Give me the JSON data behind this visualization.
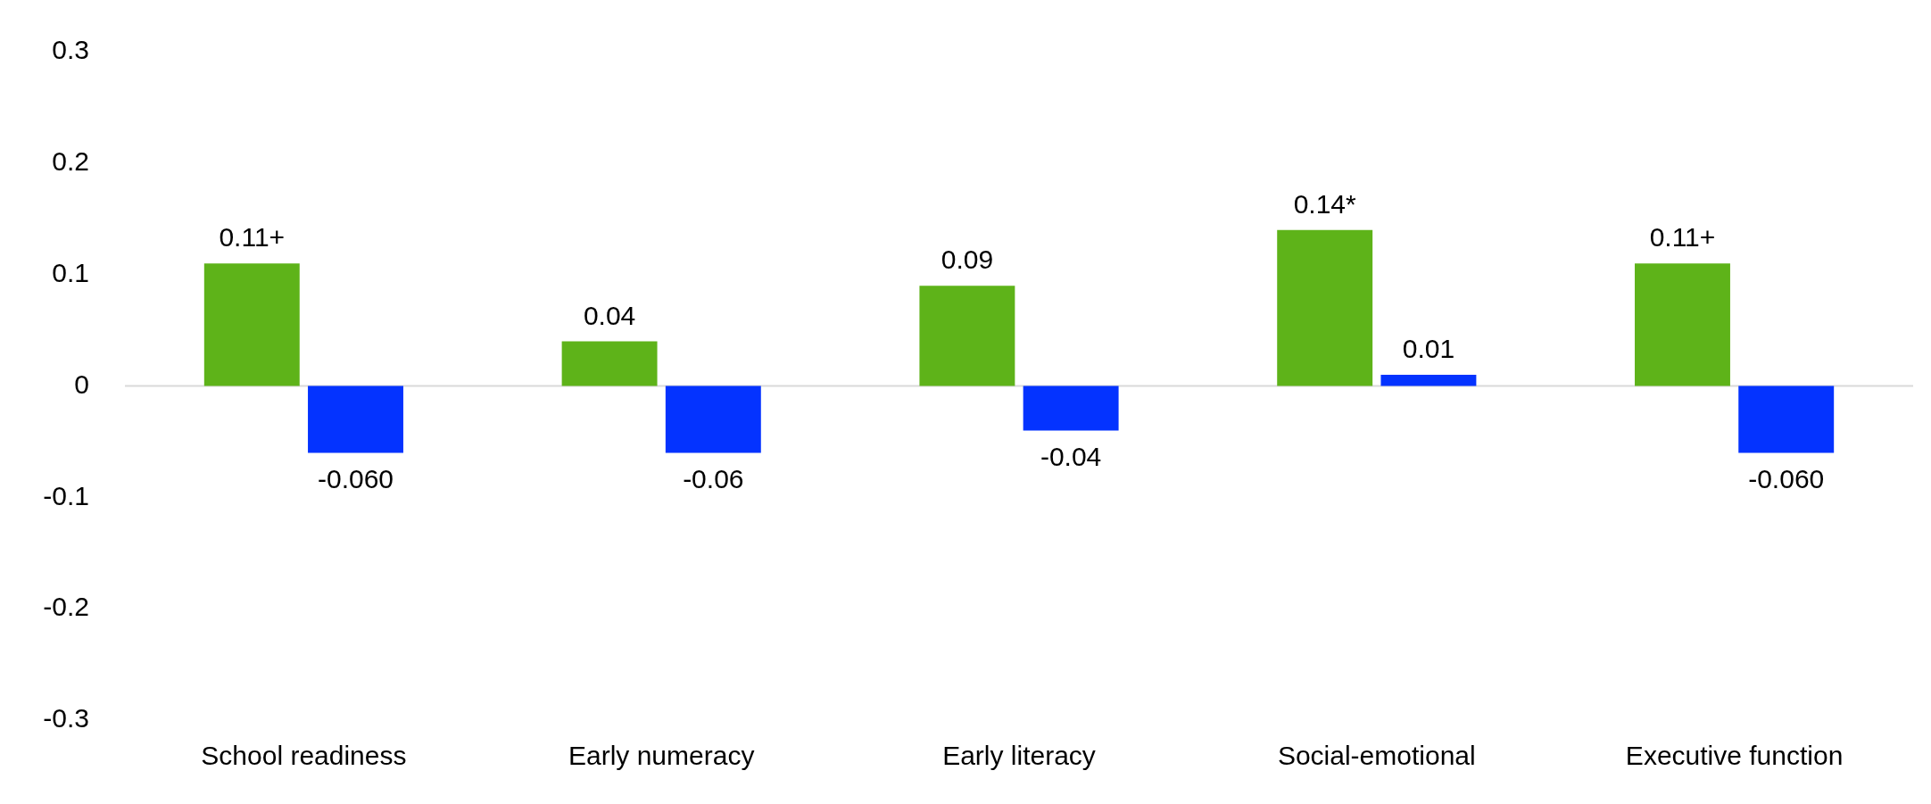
{
  "chart_data": {
    "type": "bar",
    "categories": [
      "School readiness",
      "Early numeracy",
      "Early literacy",
      "Social-emotional",
      "Executive function"
    ],
    "series": [
      {
        "color": "#5eb319",
        "values": [
          0.11,
          0.04,
          0.09,
          0.14,
          0.11
        ],
        "value_labels": [
          "0.11+",
          "0.04",
          "0.09",
          "0.14*",
          "0.11+"
        ]
      },
      {
        "color": "#0433ff",
        "values": [
          -0.06,
          -0.06,
          -0.04,
          0.01,
          -0.06
        ],
        "value_labels": [
          "-0.060",
          "-0.06",
          "-0.04",
          "0.01",
          "-0.060"
        ]
      }
    ],
    "ylim": [
      -0.3,
      0.3
    ],
    "yticks": [
      -0.3,
      -0.2,
      -0.1,
      0,
      0.1,
      0.2,
      0.3
    ],
    "grid": false,
    "legend": false,
    "ref_lines": [
      {
        "axis": "y",
        "value": 0,
        "color": "#d9d9d9"
      }
    ]
  }
}
